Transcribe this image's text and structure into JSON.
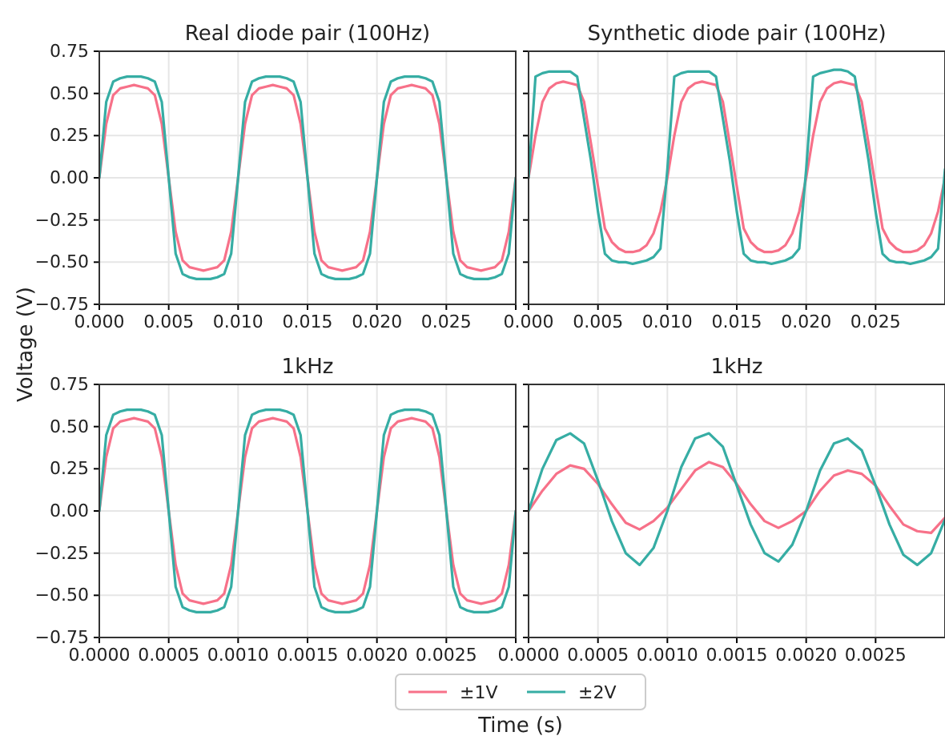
{
  "chart_data": [
    {
      "type": "line",
      "title": "Real diode pair (100Hz)",
      "ylabel": "Voltage (V)",
      "grid": true,
      "xlim": [
        0,
        0.03
      ],
      "ylim": [
        -0.75,
        0.75
      ],
      "xticks": [
        {
          "value": 0,
          "label": "0.000"
        },
        {
          "value": 0.005,
          "label": "0.005"
        },
        {
          "value": 0.01,
          "label": "0.010"
        },
        {
          "value": 0.015,
          "label": "0.015"
        },
        {
          "value": 0.02,
          "label": "0.020"
        },
        {
          "value": 0.025,
          "label": "0.025"
        },
        {
          "value": 0.03,
          "label": null
        }
      ],
      "yticks": [
        {
          "value": -0.75,
          "label": "−0.75"
        },
        {
          "value": -0.5,
          "label": "−0.50"
        },
        {
          "value": -0.25,
          "label": "−0.25"
        },
        {
          "value": 0,
          "label": "0.00"
        },
        {
          "value": 0.25,
          "label": "0.25"
        },
        {
          "value": 0.5,
          "label": "0.50"
        },
        {
          "value": 0.75,
          "label": "0.75"
        }
      ],
      "x": [
        0,
        0.0005,
        0.001,
        0.0015,
        0.002,
        0.0025,
        0.003,
        0.0035,
        0.004,
        0.0045,
        0.005,
        0.0055,
        0.006,
        0.0065,
        0.007,
        0.0075,
        0.008,
        0.0085,
        0.009,
        0.0095,
        0.01,
        0.0105,
        0.011,
        0.0115,
        0.012,
        0.0125,
        0.013,
        0.0135,
        0.014,
        0.0145,
        0.015,
        0.0155,
        0.016,
        0.0165,
        0.017,
        0.0175,
        0.018,
        0.0185,
        0.019,
        0.0195,
        0.02,
        0.0205,
        0.021,
        0.0215,
        0.022,
        0.0225,
        0.023,
        0.0235,
        0.024,
        0.0245,
        0.025,
        0.0255,
        0.026,
        0.0265,
        0.027,
        0.0275,
        0.028,
        0.0285,
        0.029,
        0.0295,
        0.03
      ],
      "series": [
        {
          "color": "#f77189",
          "values": [
            0,
            0.32,
            0.49,
            0.53,
            0.54,
            0.55,
            0.54,
            0.53,
            0.49,
            0.32,
            0,
            -0.32,
            -0.49,
            -0.53,
            -0.54,
            -0.55,
            -0.54,
            -0.53,
            -0.49,
            -0.32,
            0,
            0.32,
            0.49,
            0.53,
            0.54,
            0.55,
            0.54,
            0.53,
            0.49,
            0.32,
            0,
            -0.32,
            -0.49,
            -0.53,
            -0.54,
            -0.55,
            -0.54,
            -0.53,
            -0.49,
            -0.32,
            0,
            0.32,
            0.49,
            0.53,
            0.54,
            0.55,
            0.54,
            0.53,
            0.49,
            0.32,
            0,
            -0.32,
            -0.49,
            -0.53,
            -0.54,
            -0.55,
            -0.54,
            -0.53,
            -0.49,
            -0.32,
            0
          ]
        },
        {
          "color": "#36ada4",
          "values": [
            0,
            0.45,
            0.57,
            0.59,
            0.6,
            0.6,
            0.6,
            0.59,
            0.57,
            0.45,
            0,
            -0.45,
            -0.57,
            -0.59,
            -0.6,
            -0.6,
            -0.6,
            -0.59,
            -0.57,
            -0.45,
            0,
            0.45,
            0.57,
            0.59,
            0.6,
            0.6,
            0.6,
            0.59,
            0.57,
            0.45,
            0,
            -0.45,
            -0.57,
            -0.59,
            -0.6,
            -0.6,
            -0.6,
            -0.59,
            -0.57,
            -0.45,
            0,
            0.45,
            0.57,
            0.59,
            0.6,
            0.6,
            0.6,
            0.59,
            0.57,
            0.45,
            0,
            -0.45,
            -0.57,
            -0.59,
            -0.6,
            -0.6,
            -0.6,
            -0.59,
            -0.57,
            -0.45,
            0
          ]
        }
      ]
    },
    {
      "type": "line",
      "title": "Synthetic diode pair (100Hz)",
      "grid": true,
      "tick_labels": "x",
      "xlim": [
        0,
        0.03
      ],
      "ylim": [
        -0.75,
        0.75
      ],
      "xticks": [
        {
          "value": 0,
          "label": "0.000"
        },
        {
          "value": 0.005,
          "label": "0.005"
        },
        {
          "value": 0.01,
          "label": "0.010"
        },
        {
          "value": 0.015,
          "label": "0.015"
        },
        {
          "value": 0.02,
          "label": "0.020"
        },
        {
          "value": 0.025,
          "label": "0.025"
        }
      ],
      "yticks": [
        {
          "value": -0.75,
          "label": null
        },
        {
          "value": -0.5,
          "label": null
        },
        {
          "value": -0.25,
          "label": null
        },
        {
          "value": 0,
          "label": null
        },
        {
          "value": 0.25,
          "label": null
        },
        {
          "value": 0.5,
          "label": null
        },
        {
          "value": 0.75,
          "label": null
        }
      ],
      "x": [
        0,
        0.0005,
        0.001,
        0.0015,
        0.002,
        0.0025,
        0.003,
        0.0035,
        0.004,
        0.0045,
        0.005,
        0.0055,
        0.006,
        0.0065,
        0.007,
        0.0075,
        0.008,
        0.0085,
        0.009,
        0.0095,
        0.01,
        0.0105,
        0.011,
        0.0115,
        0.012,
        0.0125,
        0.013,
        0.0135,
        0.014,
        0.0145,
        0.015,
        0.0155,
        0.016,
        0.0165,
        0.017,
        0.0175,
        0.018,
        0.0185,
        0.019,
        0.0195,
        0.02,
        0.0205,
        0.021,
        0.0215,
        0.022,
        0.0225,
        0.023,
        0.0235,
        0.024,
        0.0245,
        0.025,
        0.0255,
        0.026,
        0.0265,
        0.027,
        0.0275,
        0.028,
        0.0285,
        0.029,
        0.0295,
        0.03
      ],
      "series": [
        {
          "color": "#f77189",
          "values": [
            0,
            0.25,
            0.45,
            0.53,
            0.56,
            0.57,
            0.56,
            0.55,
            0.45,
            0.2,
            -0.05,
            -0.3,
            -0.38,
            -0.42,
            -0.44,
            -0.44,
            -0.43,
            -0.4,
            -0.33,
            -0.2,
            0,
            0.25,
            0.45,
            0.53,
            0.56,
            0.57,
            0.56,
            0.55,
            0.45,
            0.2,
            -0.05,
            -0.3,
            -0.38,
            -0.42,
            -0.44,
            -0.44,
            -0.43,
            -0.4,
            -0.33,
            -0.2,
            0,
            0.25,
            0.45,
            0.53,
            0.56,
            0.57,
            0.56,
            0.55,
            0.45,
            0.2,
            -0.05,
            -0.3,
            -0.38,
            -0.42,
            -0.44,
            -0.44,
            -0.43,
            -0.4,
            -0.33,
            -0.2,
            0
          ]
        },
        {
          "color": "#36ada4",
          "values": [
            0,
            0.6,
            0.62,
            0.63,
            0.63,
            0.63,
            0.63,
            0.6,
            0.35,
            0.1,
            -0.2,
            -0.45,
            -0.49,
            -0.5,
            -0.5,
            -0.51,
            -0.5,
            -0.49,
            -0.47,
            -0.42,
            0.05,
            0.6,
            0.62,
            0.63,
            0.63,
            0.63,
            0.63,
            0.6,
            0.35,
            0.1,
            -0.2,
            -0.45,
            -0.49,
            -0.5,
            -0.5,
            -0.51,
            -0.5,
            -0.49,
            -0.47,
            -0.42,
            0.05,
            0.6,
            0.62,
            0.63,
            0.64,
            0.64,
            0.63,
            0.6,
            0.35,
            0.1,
            -0.2,
            -0.45,
            -0.49,
            -0.5,
            -0.5,
            -0.51,
            -0.5,
            -0.49,
            -0.47,
            -0.42,
            0.05
          ]
        }
      ]
    },
    {
      "type": "line",
      "title": "1kHz",
      "xlabel": "Time (s)",
      "legend": "bottom",
      "grid": true,
      "xlim": [
        0,
        0.003
      ],
      "ylim": [
        -0.75,
        0.75
      ],
      "xticks": [
        {
          "value": 0,
          "label": "0.0000"
        },
        {
          "value": 0.0005,
          "label": "0.0005"
        },
        {
          "value": 0.001,
          "label": "0.0010"
        },
        {
          "value": 0.0015,
          "label": "0.0015"
        },
        {
          "value": 0.002,
          "label": "0.0020"
        },
        {
          "value": 0.0025,
          "label": "0.0025"
        },
        {
          "value": 0.003,
          "label": null
        }
      ],
      "yticks": [
        {
          "value": -0.75,
          "label": "−0.75"
        },
        {
          "value": -0.5,
          "label": "−0.50"
        },
        {
          "value": -0.25,
          "label": "−0.25"
        },
        {
          "value": 0,
          "label": "0.00"
        },
        {
          "value": 0.25,
          "label": "0.25"
        },
        {
          "value": 0.5,
          "label": "0.50"
        },
        {
          "value": 0.75,
          "label": "0.75"
        }
      ],
      "x": [
        0,
        5e-05,
        0.0001,
        0.00015,
        0.0002,
        0.00025,
        0.0003,
        0.00035,
        0.0004,
        0.00045,
        0.0005,
        0.00055,
        0.0006,
        0.00065,
        0.0007,
        0.00075,
        0.0008,
        0.00085,
        0.0009,
        0.00095,
        0.001,
        0.00105,
        0.0011,
        0.00115,
        0.0012,
        0.00125,
        0.0013,
        0.00135,
        0.0014,
        0.00145,
        0.0015,
        0.00155,
        0.0016,
        0.00165,
        0.0017,
        0.00175,
        0.0018,
        0.00185,
        0.0019,
        0.00195,
        0.002,
        0.00205,
        0.0021,
        0.00215,
        0.0022,
        0.00225,
        0.0023,
        0.00235,
        0.0024,
        0.00245,
        0.0025,
        0.00255,
        0.0026,
        0.00265,
        0.0027,
        0.00275,
        0.0028,
        0.00285,
        0.0029,
        0.00295,
        0.003
      ],
      "series": [
        {
          "name": "±1V",
          "color": "#f77189",
          "values": [
            0,
            0.32,
            0.49,
            0.53,
            0.54,
            0.55,
            0.54,
            0.53,
            0.49,
            0.32,
            0,
            -0.32,
            -0.49,
            -0.53,
            -0.54,
            -0.55,
            -0.54,
            -0.53,
            -0.49,
            -0.32,
            0,
            0.32,
            0.49,
            0.53,
            0.54,
            0.55,
            0.54,
            0.53,
            0.49,
            0.32,
            0,
            -0.32,
            -0.49,
            -0.53,
            -0.54,
            -0.55,
            -0.54,
            -0.53,
            -0.49,
            -0.32,
            0,
            0.32,
            0.49,
            0.53,
            0.54,
            0.55,
            0.54,
            0.53,
            0.49,
            0.32,
            0,
            -0.32,
            -0.49,
            -0.53,
            -0.54,
            -0.55,
            -0.54,
            -0.53,
            -0.49,
            -0.32,
            0
          ]
        },
        {
          "name": "±2V",
          "color": "#36ada4",
          "values": [
            0,
            0.45,
            0.57,
            0.59,
            0.6,
            0.6,
            0.6,
            0.59,
            0.57,
            0.45,
            0,
            -0.45,
            -0.57,
            -0.59,
            -0.6,
            -0.6,
            -0.6,
            -0.59,
            -0.57,
            -0.45,
            0,
            0.45,
            0.57,
            0.59,
            0.6,
            0.6,
            0.6,
            0.59,
            0.57,
            0.45,
            0,
            -0.45,
            -0.57,
            -0.59,
            -0.6,
            -0.6,
            -0.6,
            -0.59,
            -0.57,
            -0.45,
            0,
            0.45,
            0.57,
            0.59,
            0.6,
            0.6,
            0.6,
            0.59,
            0.57,
            0.45,
            0,
            -0.45,
            -0.57,
            -0.59,
            -0.6,
            -0.6,
            -0.6,
            -0.59,
            -0.57,
            -0.45,
            0
          ]
        }
      ]
    },
    {
      "type": "line",
      "title": "1kHz",
      "grid": true,
      "tick_labels": "x",
      "xlim": [
        0,
        0.003
      ],
      "ylim": [
        -0.75,
        0.75
      ],
      "xticks": [
        {
          "value": 0,
          "label": "0.0000"
        },
        {
          "value": 0.0005,
          "label": "0.0005"
        },
        {
          "value": 0.001,
          "label": "0.0010"
        },
        {
          "value": 0.0015,
          "label": "0.0015"
        },
        {
          "value": 0.002,
          "label": "0.0020"
        },
        {
          "value": 0.0025,
          "label": "0.0025"
        }
      ],
      "yticks": [
        {
          "value": -0.75,
          "label": null
        },
        {
          "value": -0.5,
          "label": null
        },
        {
          "value": -0.25,
          "label": null
        },
        {
          "value": 0,
          "label": null
        },
        {
          "value": 0.25,
          "label": null
        },
        {
          "value": 0.5,
          "label": null
        },
        {
          "value": 0.75,
          "label": null
        }
      ],
      "x": [
        0,
        0.0001,
        0.0002,
        0.0003,
        0.0004,
        0.0005,
        0.0006,
        0.0007,
        0.0008,
        0.0009,
        0.001,
        0.0011,
        0.0012,
        0.0013,
        0.0014,
        0.0015,
        0.0016,
        0.0017,
        0.0018,
        0.0019,
        0.002,
        0.0021,
        0.0022,
        0.0023,
        0.0024,
        0.0025,
        0.0026,
        0.0027,
        0.0028,
        0.0029,
        0.003
      ],
      "series": [
        {
          "color": "#f77189",
          "values": [
            0,
            0.12,
            0.22,
            0.27,
            0.25,
            0.16,
            0.04,
            -0.07,
            -0.11,
            -0.06,
            0.02,
            0.13,
            0.24,
            0.29,
            0.26,
            0.16,
            0.04,
            -0.06,
            -0.1,
            -0.06,
            0,
            0.12,
            0.21,
            0.24,
            0.22,
            0.15,
            0.03,
            -0.08,
            -0.12,
            -0.13,
            -0.04
          ]
        },
        {
          "color": "#36ada4",
          "values": [
            0,
            0.25,
            0.42,
            0.46,
            0.4,
            0.18,
            -0.06,
            -0.25,
            -0.32,
            -0.22,
            0,
            0.26,
            0.43,
            0.46,
            0.38,
            0.15,
            -0.08,
            -0.25,
            -0.3,
            -0.2,
            0,
            0.24,
            0.4,
            0.43,
            0.36,
            0.15,
            -0.08,
            -0.26,
            -0.32,
            -0.25,
            -0.05
          ]
        }
      ]
    }
  ]
}
